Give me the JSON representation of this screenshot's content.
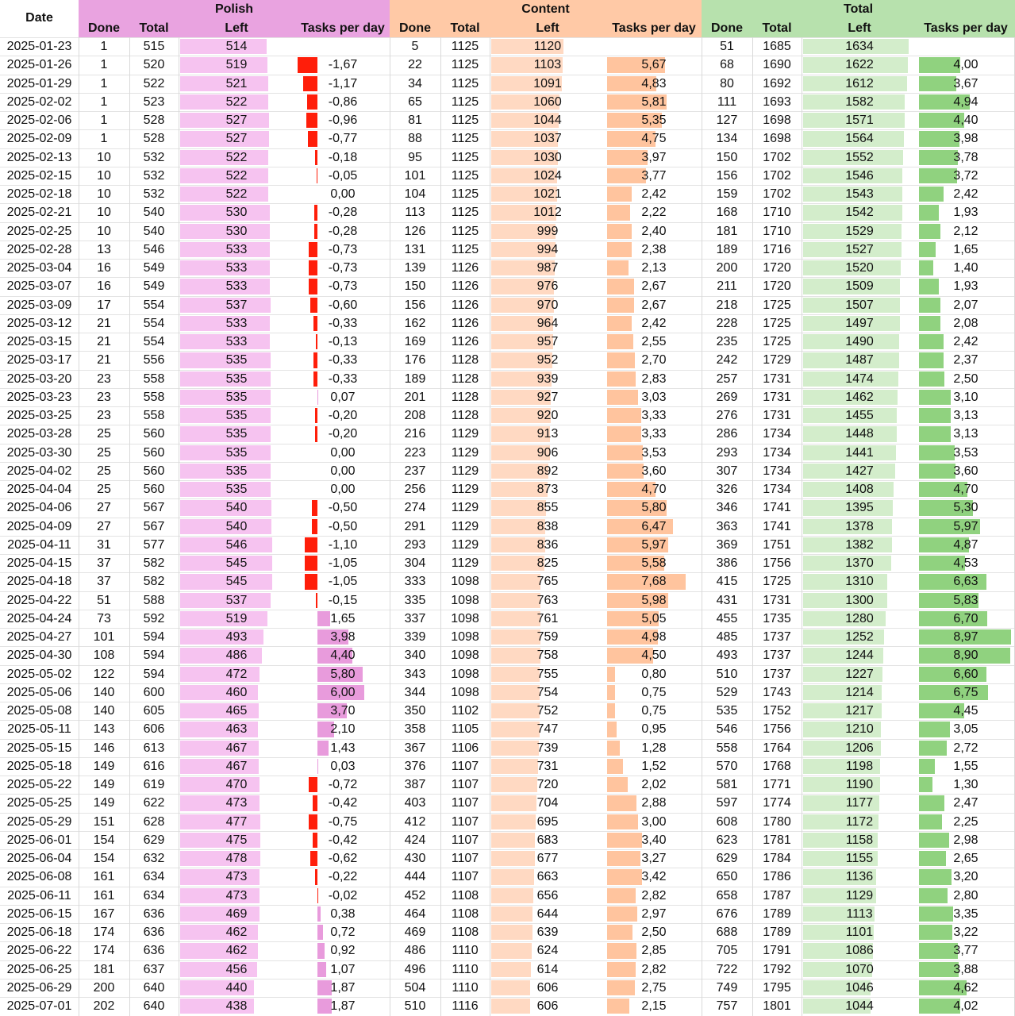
{
  "chart_data": {
    "type": "table",
    "header": {
      "date": "Date",
      "groups": [
        {
          "key": "polish",
          "title": "Polish",
          "color_header": "#e9a3e0",
          "color_left_bar": "#f6c3f0",
          "color_pos_bar": "#e89bdc",
          "color_neg_bar": "#ff1e0a"
        },
        {
          "key": "content",
          "title": "Content",
          "color_header": "#ffc9a6",
          "color_left_bar": "#ffd9c2",
          "color_pos_bar": "#ffc49e",
          "color_neg_bar": "#ff1e0a"
        },
        {
          "key": "total",
          "title": "Total",
          "color_header": "#b7e1ad",
          "color_left_bar": "#d3edcb",
          "color_pos_bar": "#90d27f",
          "color_neg_bar": "#ff1e0a"
        }
      ],
      "sub": [
        "Done",
        "Total",
        "Left",
        "Tasks per day"
      ]
    },
    "rows": [
      {
        "date": "2025-01-23",
        "polish": [
          1,
          515,
          514,
          ""
        ],
        "content": [
          5,
          1125,
          1120,
          ""
        ],
        "total": [
          51,
          1685,
          1634,
          ""
        ]
      },
      {
        "date": "2025-01-26",
        "polish": [
          1,
          520,
          519,
          "-1,67"
        ],
        "content": [
          22,
          1125,
          1103,
          "5,67"
        ],
        "total": [
          68,
          1690,
          1622,
          "4,00"
        ]
      },
      {
        "date": "2025-01-29",
        "polish": [
          1,
          522,
          521,
          "-1,17"
        ],
        "content": [
          34,
          1125,
          1091,
          "4,83"
        ],
        "total": [
          80,
          1692,
          1612,
          "3,67"
        ]
      },
      {
        "date": "2025-02-02",
        "polish": [
          1,
          523,
          522,
          "-0,86"
        ],
        "content": [
          65,
          1125,
          1060,
          "5,81"
        ],
        "total": [
          111,
          1693,
          1582,
          "4,94"
        ]
      },
      {
        "date": "2025-02-06",
        "polish": [
          1,
          528,
          527,
          "-0,96"
        ],
        "content": [
          81,
          1125,
          1044,
          "5,35"
        ],
        "total": [
          127,
          1698,
          1571,
          "4,40"
        ]
      },
      {
        "date": "2025-02-09",
        "polish": [
          1,
          528,
          527,
          "-0,77"
        ],
        "content": [
          88,
          1125,
          1037,
          "4,75"
        ],
        "total": [
          134,
          1698,
          1564,
          "3,98"
        ]
      },
      {
        "date": "2025-02-13",
        "polish": [
          10,
          532,
          522,
          "-0,18"
        ],
        "content": [
          95,
          1125,
          1030,
          "3,97"
        ],
        "total": [
          150,
          1702,
          1552,
          "3,78"
        ]
      },
      {
        "date": "2025-02-15",
        "polish": [
          10,
          532,
          522,
          "-0,05"
        ],
        "content": [
          101,
          1125,
          1024,
          "3,77"
        ],
        "total": [
          156,
          1702,
          1546,
          "3,72"
        ]
      },
      {
        "date": "2025-02-18",
        "polish": [
          10,
          532,
          522,
          "0,00"
        ],
        "content": [
          104,
          1125,
          1021,
          "2,42"
        ],
        "total": [
          159,
          1702,
          1543,
          "2,42"
        ]
      },
      {
        "date": "2025-02-21",
        "polish": [
          10,
          540,
          530,
          "-0,28"
        ],
        "content": [
          113,
          1125,
          1012,
          "2,22"
        ],
        "total": [
          168,
          1710,
          1542,
          "1,93"
        ]
      },
      {
        "date": "2025-02-25",
        "polish": [
          10,
          540,
          530,
          "-0,28"
        ],
        "content": [
          126,
          1125,
          999,
          "2,40"
        ],
        "total": [
          181,
          1710,
          1529,
          "2,12"
        ]
      },
      {
        "date": "2025-02-28",
        "polish": [
          13,
          546,
          533,
          "-0,73"
        ],
        "content": [
          131,
          1125,
          994,
          "2,38"
        ],
        "total": [
          189,
          1716,
          1527,
          "1,65"
        ]
      },
      {
        "date": "2025-03-04",
        "polish": [
          16,
          549,
          533,
          "-0,73"
        ],
        "content": [
          139,
          1126,
          987,
          "2,13"
        ],
        "total": [
          200,
          1720,
          1520,
          "1,40"
        ]
      },
      {
        "date": "2025-03-07",
        "polish": [
          16,
          549,
          533,
          "-0,73"
        ],
        "content": [
          150,
          1126,
          976,
          "2,67"
        ],
        "total": [
          211,
          1720,
          1509,
          "1,93"
        ]
      },
      {
        "date": "2025-03-09",
        "polish": [
          17,
          554,
          537,
          "-0,60"
        ],
        "content": [
          156,
          1126,
          970,
          "2,67"
        ],
        "total": [
          218,
          1725,
          1507,
          "2,07"
        ]
      },
      {
        "date": "2025-03-12",
        "polish": [
          21,
          554,
          533,
          "-0,33"
        ],
        "content": [
          162,
          1126,
          964,
          "2,42"
        ],
        "total": [
          228,
          1725,
          1497,
          "2,08"
        ]
      },
      {
        "date": "2025-03-15",
        "polish": [
          21,
          554,
          533,
          "-0,13"
        ],
        "content": [
          169,
          1126,
          957,
          "2,55"
        ],
        "total": [
          235,
          1725,
          1490,
          "2,42"
        ]
      },
      {
        "date": "2025-03-17",
        "polish": [
          21,
          556,
          535,
          "-0,33"
        ],
        "content": [
          176,
          1128,
          952,
          "2,70"
        ],
        "total": [
          242,
          1729,
          1487,
          "2,37"
        ]
      },
      {
        "date": "2025-03-20",
        "polish": [
          23,
          558,
          535,
          "-0,33"
        ],
        "content": [
          189,
          1128,
          939,
          "2,83"
        ],
        "total": [
          257,
          1731,
          1474,
          "2,50"
        ]
      },
      {
        "date": "2025-03-23",
        "polish": [
          23,
          558,
          535,
          "0,07"
        ],
        "content": [
          201,
          1128,
          927,
          "3,03"
        ],
        "total": [
          269,
          1731,
          1462,
          "3,10"
        ]
      },
      {
        "date": "2025-03-25",
        "polish": [
          23,
          558,
          535,
          "-0,20"
        ],
        "content": [
          208,
          1128,
          920,
          "3,33"
        ],
        "total": [
          276,
          1731,
          1455,
          "3,13"
        ]
      },
      {
        "date": "2025-03-28",
        "polish": [
          25,
          560,
          535,
          "-0,20"
        ],
        "content": [
          216,
          1129,
          913,
          "3,33"
        ],
        "total": [
          286,
          1734,
          1448,
          "3,13"
        ]
      },
      {
        "date": "2025-03-30",
        "polish": [
          25,
          560,
          535,
          "0,00"
        ],
        "content": [
          223,
          1129,
          906,
          "3,53"
        ],
        "total": [
          293,
          1734,
          1441,
          "3,53"
        ]
      },
      {
        "date": "2025-04-02",
        "polish": [
          25,
          560,
          535,
          "0,00"
        ],
        "content": [
          237,
          1129,
          892,
          "3,60"
        ],
        "total": [
          307,
          1734,
          1427,
          "3,60"
        ]
      },
      {
        "date": "2025-04-04",
        "polish": [
          25,
          560,
          535,
          "0,00"
        ],
        "content": [
          256,
          1129,
          873,
          "4,70"
        ],
        "total": [
          326,
          1734,
          1408,
          "4,70"
        ]
      },
      {
        "date": "2025-04-06",
        "polish": [
          27,
          567,
          540,
          "-0,50"
        ],
        "content": [
          274,
          1129,
          855,
          "5,80"
        ],
        "total": [
          346,
          1741,
          1395,
          "5,30"
        ]
      },
      {
        "date": "2025-04-09",
        "polish": [
          27,
          567,
          540,
          "-0,50"
        ],
        "content": [
          291,
          1129,
          838,
          "6,47"
        ],
        "total": [
          363,
          1741,
          1378,
          "5,97"
        ]
      },
      {
        "date": "2025-04-11",
        "polish": [
          31,
          577,
          546,
          "-1,10"
        ],
        "content": [
          293,
          1129,
          836,
          "5,97"
        ],
        "total": [
          369,
          1751,
          1382,
          "4,87"
        ]
      },
      {
        "date": "2025-04-15",
        "polish": [
          37,
          582,
          545,
          "-1,05"
        ],
        "content": [
          304,
          1129,
          825,
          "5,58"
        ],
        "total": [
          386,
          1756,
          1370,
          "4,53"
        ]
      },
      {
        "date": "2025-04-18",
        "polish": [
          37,
          582,
          545,
          "-1,05"
        ],
        "content": [
          333,
          1098,
          765,
          "7,68"
        ],
        "total": [
          415,
          1725,
          1310,
          "6,63"
        ]
      },
      {
        "date": "2025-04-22",
        "polish": [
          51,
          588,
          537,
          "-0,15"
        ],
        "content": [
          335,
          1098,
          763,
          "5,98"
        ],
        "total": [
          431,
          1731,
          1300,
          "5,83"
        ]
      },
      {
        "date": "2025-04-24",
        "polish": [
          73,
          592,
          519,
          "1,65"
        ],
        "content": [
          337,
          1098,
          761,
          "5,05"
        ],
        "total": [
          455,
          1735,
          1280,
          "6,70"
        ]
      },
      {
        "date": "2025-04-27",
        "polish": [
          101,
          594,
          493,
          "3,98"
        ],
        "content": [
          339,
          1098,
          759,
          "4,98"
        ],
        "total": [
          485,
          1737,
          1252,
          "8,97"
        ]
      },
      {
        "date": "2025-04-30",
        "polish": [
          108,
          594,
          486,
          "4,40"
        ],
        "content": [
          340,
          1098,
          758,
          "4,50"
        ],
        "total": [
          493,
          1737,
          1244,
          "8,90"
        ]
      },
      {
        "date": "2025-05-02",
        "polish": [
          122,
          594,
          472,
          "5,80"
        ],
        "content": [
          343,
          1098,
          755,
          "0,80"
        ],
        "total": [
          510,
          1737,
          1227,
          "6,60"
        ]
      },
      {
        "date": "2025-05-06",
        "polish": [
          140,
          600,
          460,
          "6,00"
        ],
        "content": [
          344,
          1098,
          754,
          "0,75"
        ],
        "total": [
          529,
          1743,
          1214,
          "6,75"
        ]
      },
      {
        "date": "2025-05-08",
        "polish": [
          140,
          605,
          465,
          "3,70"
        ],
        "content": [
          350,
          1102,
          752,
          "0,75"
        ],
        "total": [
          535,
          1752,
          1217,
          "4,45"
        ]
      },
      {
        "date": "2025-05-11",
        "polish": [
          143,
          606,
          463,
          "2,10"
        ],
        "content": [
          358,
          1105,
          747,
          "0,95"
        ],
        "total": [
          546,
          1756,
          1210,
          "3,05"
        ]
      },
      {
        "date": "2025-05-15",
        "polish": [
          146,
          613,
          467,
          "1,43"
        ],
        "content": [
          367,
          1106,
          739,
          "1,28"
        ],
        "total": [
          558,
          1764,
          1206,
          "2,72"
        ]
      },
      {
        "date": "2025-05-18",
        "polish": [
          149,
          616,
          467,
          "0,03"
        ],
        "content": [
          376,
          1107,
          731,
          "1,52"
        ],
        "total": [
          570,
          1768,
          1198,
          "1,55"
        ]
      },
      {
        "date": "2025-05-22",
        "polish": [
          149,
          619,
          470,
          "-0,72"
        ],
        "content": [
          387,
          1107,
          720,
          "2,02"
        ],
        "total": [
          581,
          1771,
          1190,
          "1,30"
        ]
      },
      {
        "date": "2025-05-25",
        "polish": [
          149,
          622,
          473,
          "-0,42"
        ],
        "content": [
          403,
          1107,
          704,
          "2,88"
        ],
        "total": [
          597,
          1774,
          1177,
          "2,47"
        ]
      },
      {
        "date": "2025-05-29",
        "polish": [
          151,
          628,
          477,
          "-0,75"
        ],
        "content": [
          412,
          1107,
          695,
          "3,00"
        ],
        "total": [
          608,
          1780,
          1172,
          "2,25"
        ]
      },
      {
        "date": "2025-06-01",
        "polish": [
          154,
          629,
          475,
          "-0,42"
        ],
        "content": [
          424,
          1107,
          683,
          "3,40"
        ],
        "total": [
          623,
          1781,
          1158,
          "2,98"
        ]
      },
      {
        "date": "2025-06-04",
        "polish": [
          154,
          632,
          478,
          "-0,62"
        ],
        "content": [
          430,
          1107,
          677,
          "3,27"
        ],
        "total": [
          629,
          1784,
          1155,
          "2,65"
        ]
      },
      {
        "date": "2025-06-08",
        "polish": [
          161,
          634,
          473,
          "-0,22"
        ],
        "content": [
          444,
          1107,
          663,
          "3,42"
        ],
        "total": [
          650,
          1786,
          1136,
          "3,20"
        ]
      },
      {
        "date": "2025-06-11",
        "polish": [
          161,
          634,
          473,
          "-0,02"
        ],
        "content": [
          452,
          1108,
          656,
          "2,82"
        ],
        "total": [
          658,
          1787,
          1129,
          "2,80"
        ]
      },
      {
        "date": "2025-06-15",
        "polish": [
          167,
          636,
          469,
          "0,38"
        ],
        "content": [
          464,
          1108,
          644,
          "2,97"
        ],
        "total": [
          676,
          1789,
          1113,
          "3,35"
        ]
      },
      {
        "date": "2025-06-18",
        "polish": [
          174,
          636,
          462,
          "0,72"
        ],
        "content": [
          469,
          1108,
          639,
          "2,50"
        ],
        "total": [
          688,
          1789,
          1101,
          "3,22"
        ]
      },
      {
        "date": "2025-06-22",
        "polish": [
          174,
          636,
          462,
          "0,92"
        ],
        "content": [
          486,
          1110,
          624,
          "2,85"
        ],
        "total": [
          705,
          1791,
          1086,
          "3,77"
        ]
      },
      {
        "date": "2025-06-25",
        "polish": [
          181,
          637,
          456,
          "1,07"
        ],
        "content": [
          496,
          1110,
          614,
          "2,82"
        ],
        "total": [
          722,
          1792,
          1070,
          "3,88"
        ]
      },
      {
        "date": "2025-06-29",
        "polish": [
          200,
          640,
          440,
          "1,87"
        ],
        "content": [
          504,
          1110,
          606,
          "2,75"
        ],
        "total": [
          749,
          1795,
          1046,
          "4,62"
        ]
      },
      {
        "date": "2025-07-01",
        "polish": [
          202,
          640,
          438,
          "1,87"
        ],
        "content": [
          510,
          1116,
          606,
          "2,15"
        ],
        "total": [
          757,
          1801,
          1044,
          "4,02"
        ]
      }
    ]
  }
}
